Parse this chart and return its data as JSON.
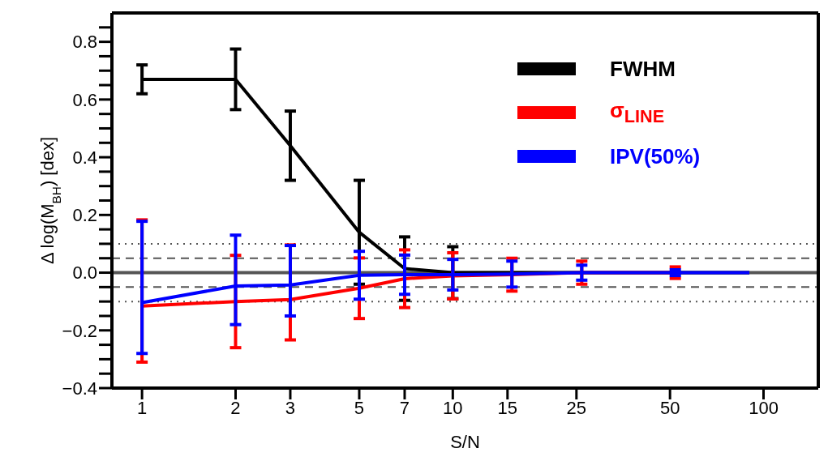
{
  "chart_data": {
    "type": "line",
    "xlabel": "S/N",
    "ylabel": "Δ log(M$_{BH}$) [dex]",
    "log": "x",
    "marker": "none",
    "legend": "top right",
    "xlim": [
      0.8,
      150
    ],
    "xticks": [
      1,
      2,
      3,
      5,
      7,
      10,
      15,
      25,
      50,
      100
    ],
    "ylim": [
      -0.4,
      0.9
    ],
    "yticks": [
      {
        "value": -0.4,
        "label": "−0.4"
      },
      {
        "value": -0.35,
        "label": null
      },
      {
        "value": -0.3,
        "label": null
      },
      {
        "value": -0.25,
        "label": null
      },
      {
        "value": -0.2,
        "label": "−0.2"
      },
      {
        "value": -0.15,
        "label": null
      },
      {
        "value": -0.1,
        "label": null
      },
      {
        "value": -0.05,
        "label": null
      },
      {
        "value": 0,
        "label": "0.0"
      },
      {
        "value": 0.05,
        "label": null
      },
      {
        "value": 0.1,
        "label": null
      },
      {
        "value": 0.15,
        "label": null
      },
      {
        "value": 0.2,
        "label": "0.2"
      },
      {
        "value": 0.25,
        "label": null
      },
      {
        "value": 0.3,
        "label": null
      },
      {
        "value": 0.35,
        "label": null
      },
      {
        "value": 0.4,
        "label": "0.4"
      },
      {
        "value": 0.45,
        "label": null
      },
      {
        "value": 0.5,
        "label": null
      },
      {
        "value": 0.55,
        "label": null
      },
      {
        "value": 0.6,
        "label": "0.6"
      },
      {
        "value": 0.65,
        "label": null
      },
      {
        "value": 0.7,
        "label": null
      },
      {
        "value": 0.75,
        "label": null
      },
      {
        "value": 0.8,
        "label": "0.8"
      },
      {
        "value": 0.85,
        "label": null
      }
    ],
    "x": [
      1,
      2,
      3,
      5,
      7,
      10,
      15.5,
      26,
      52,
      90
    ],
    "series": [
      {
        "name": "FWHM",
        "color": "#000000",
        "values": [
          0.67,
          0.67,
          0.44,
          0.14,
          0.014,
          0,
          0,
          0,
          0,
          0
        ],
        "errors": [
          0.05,
          0.105,
          0.12,
          0.18,
          0.11,
          0.09,
          null,
          null,
          null,
          null
        ]
      },
      {
        "name": "σ$_{LINE}$",
        "color": "#ff0000",
        "values": [
          -0.116,
          -0.1,
          -0.093,
          -0.054,
          -0.021,
          -0.011,
          -0.007,
          0,
          0,
          null
        ],
        "errors": [
          [
            -0.31,
            0.183
          ],
          0.16,
          [
            -0.233,
            0.096
          ],
          0.105,
          0.1,
          0.08,
          0.057,
          0.04,
          0.02,
          null
        ]
      },
      {
        "name": "IPV(50%)",
        "color": "#0000ff",
        "values": [
          -0.104,
          -0.046,
          -0.043,
          -0.009,
          -0.007,
          -0.007,
          -0.005,
          0,
          0,
          0
        ],
        "errors": [
          [
            -0.28,
            0.178
          ],
          [
            -0.18,
            0.13
          ],
          [
            -0.15,
            0.094
          ],
          0.083,
          0.068,
          0.053,
          0.045,
          0.026,
          0.01,
          null
        ]
      }
    ],
    "ref_lines": [
      {
        "axis": "y",
        "value": 0,
        "color": "#555555",
        "line_style": "solid"
      },
      {
        "axis": "y",
        "value": 0.05,
        "color": "#555555",
        "line_style": "dashed"
      },
      {
        "axis": "y",
        "value": -0.05,
        "color": "#555555",
        "line_style": "dashed"
      },
      {
        "axis": "y",
        "value": 0.1,
        "color": "#555555",
        "line_style": "dotted"
      },
      {
        "axis": "y",
        "value": -0.1,
        "color": "#555555",
        "line_style": "dotted"
      }
    ]
  }
}
